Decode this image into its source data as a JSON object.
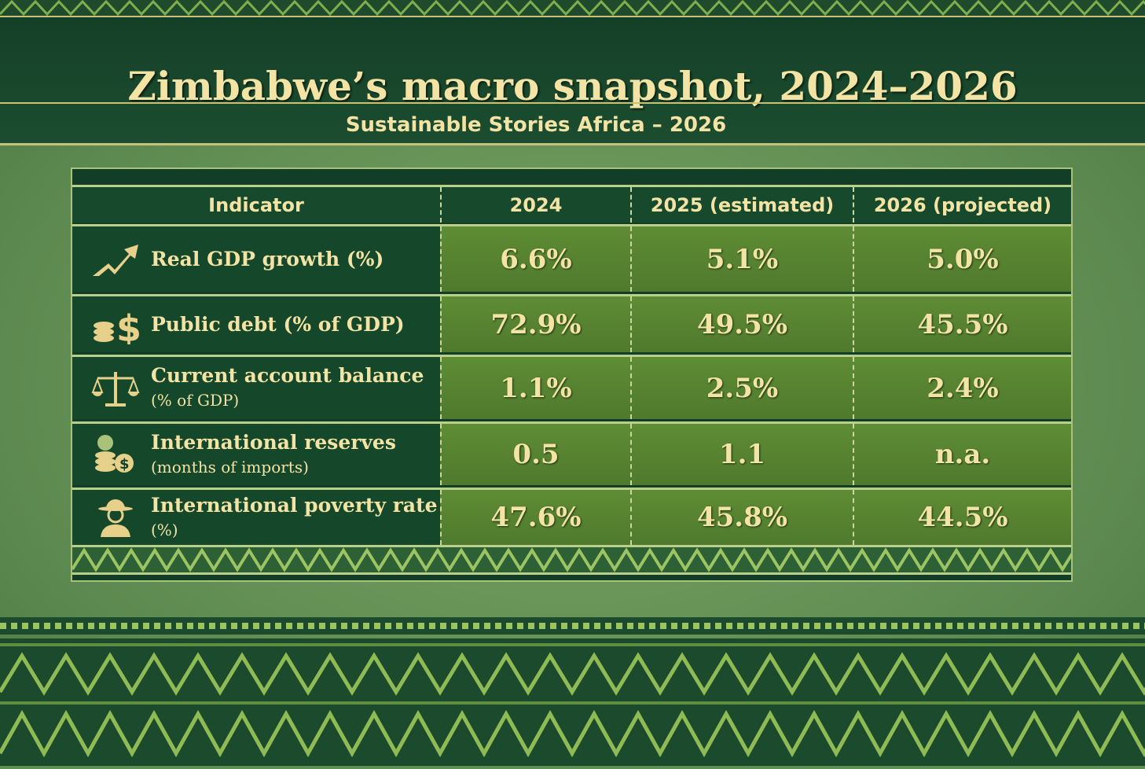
{
  "header": {
    "title": "Zimbabwe’s macro snapshot, 2024–2026",
    "subtitle": "Sustainable Stories Africa – 2026"
  },
  "chart_data": {
    "type": "table",
    "title": "Zimbabwe’s macro snapshot, 2024–2026",
    "subtitle": "Sustainable Stories Africa – 2026",
    "columns": [
      "Indicator",
      "2024",
      "2025 (estimated)",
      "2026 (projected)"
    ],
    "rows": [
      {
        "icon": "trend-up-arrow-icon",
        "label": "Real GDP growth (%)",
        "sub": "",
        "values": [
          "6.6%",
          "5.1%",
          "5.0%"
        ]
      },
      {
        "icon": "coins-dollar-icon",
        "label": "Public debt (% of GDP)",
        "sub": "",
        "values": [
          "72.9%",
          "49.5%",
          "45.5%"
        ]
      },
      {
        "icon": "balance-scale-icon",
        "label": "Current account balance",
        "sub": "(% of GDP)",
        "values": [
          "1.1%",
          "2.5%",
          "2.4%"
        ]
      },
      {
        "icon": "money-bag-reserves-icon",
        "label": "International reserves",
        "sub": "(months of imports)",
        "values": [
          "0.5",
          "1.1",
          "n.a."
        ]
      },
      {
        "icon": "person-hat-icon",
        "label": "International poverty rate",
        "sub": "(%)",
        "values": [
          "47.6%",
          "45.8%",
          "44.5%"
        ]
      }
    ]
  },
  "colors": {
    "dark_green": "#123d26",
    "cell_green": "#5f8c35",
    "gold_text": "#f3e3a4",
    "line": "#b9d08a"
  }
}
